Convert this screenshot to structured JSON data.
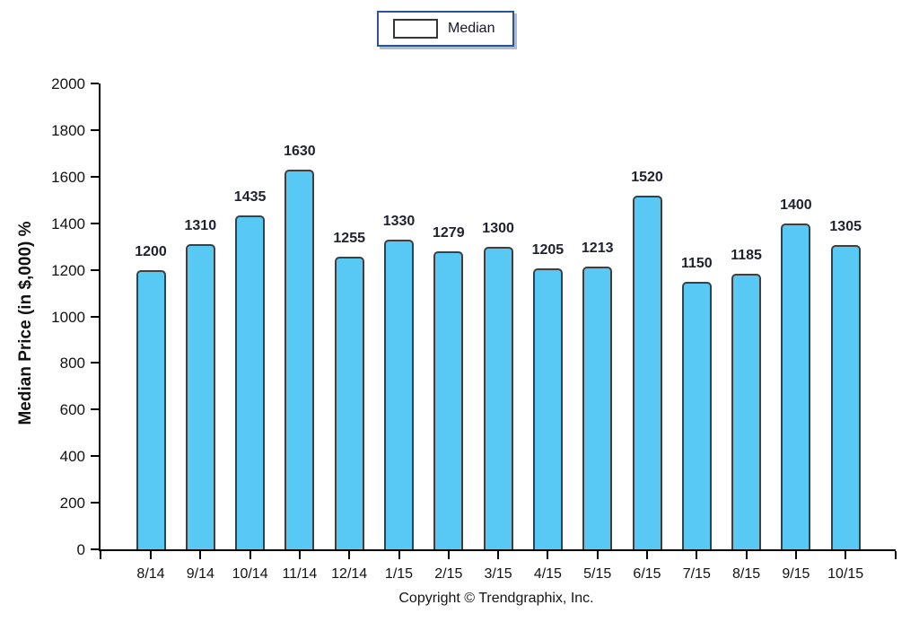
{
  "legend": {
    "label": "Median"
  },
  "footer": {
    "copyright": "Copyright © Trendgraphix, Inc."
  },
  "colors": {
    "bar_fill": "#58C9F4",
    "bar_border": "#3C4043",
    "axis": "#000000",
    "legend_border": "#2E5395"
  },
  "chart_data": {
    "type": "bar",
    "title": "",
    "xlabel": "",
    "ylabel": "Median Price (in $,000) %",
    "categories": [
      "8/14",
      "9/14",
      "10/14",
      "11/14",
      "12/14",
      "1/15",
      "2/15",
      "3/15",
      "4/15",
      "5/15",
      "6/15",
      "7/15",
      "8/15",
      "9/15",
      "10/15"
    ],
    "series": [
      {
        "name": "Median",
        "values": [
          1200,
          1310,
          1435,
          1630,
          1255,
          1330,
          1279,
          1300,
          1205,
          1213,
          1520,
          1150,
          1185,
          1400,
          1305
        ]
      }
    ],
    "data_labels": [
      "1200",
      "1310",
      "1435",
      "1630",
      "1255",
      "1330",
      "1279",
      "1300",
      "1205",
      "1213",
      "1520",
      "1150",
      "1185",
      "1400",
      "1305"
    ],
    "ylim": [
      0,
      2000
    ],
    "yticks": [
      0,
      200,
      400,
      600,
      800,
      1000,
      1200,
      1400,
      1600,
      1800,
      2000
    ],
    "grid": false,
    "legend_position": "top-center"
  }
}
